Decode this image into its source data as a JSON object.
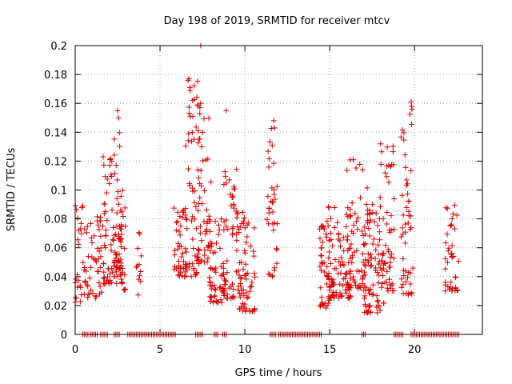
{
  "chart_data": {
    "type": "scatter",
    "title": "Day 198 of 2019, SRMTID for receiver mtcv",
    "xlabel": "GPS time / hours",
    "ylabel": "SRMTID / TECUs",
    "xlim": [
      0,
      24
    ],
    "ylim": [
      0,
      0.2
    ],
    "x_ticks": [
      0,
      5,
      10,
      15,
      20
    ],
    "x_tick_labels": [
      "0",
      "5",
      "10",
      "15",
      "20"
    ],
    "y_ticks": [
      0,
      0.02,
      0.04,
      0.06,
      0.08,
      0.1,
      0.12,
      0.14,
      0.16,
      0.18,
      0.2
    ],
    "y_tick_labels": [
      "0",
      "0.02",
      "0.04",
      "0.06",
      "0.08",
      "0.1",
      "0.12",
      "0.14",
      "0.16",
      "0.18",
      "0.2"
    ],
    "grid": true,
    "marker": "+",
    "color": "#dd0000",
    "zero_segments": [
      [
        0.45,
        0.75
      ],
      [
        0.9,
        1.3
      ],
      [
        1.5,
        1.9
      ],
      [
        2.3,
        2.6
      ],
      [
        3.1,
        5.9
      ],
      [
        7.1,
        7.5
      ],
      [
        8.2,
        8.4
      ],
      [
        8.7,
        8.9
      ],
      [
        11.5,
        11.8
      ],
      [
        12.0,
        14.5
      ],
      [
        16.9,
        17.1
      ],
      [
        18.8,
        19.3
      ],
      [
        19.8,
        22.6
      ]
    ],
    "clusters": [
      {
        "x_range": [
          0.0,
          0.6
        ],
        "y_range": [
          0.022,
          0.09
        ],
        "n": 30
      },
      {
        "x_range": [
          0.6,
          1.6
        ],
        "y_range": [
          0.025,
          0.085
        ],
        "n": 45
      },
      {
        "x_range": [
          1.6,
          2.6
        ],
        "y_range": [
          0.035,
          0.125
        ],
        "n": 60
      },
      {
        "x_range": [
          2.3,
          2.8
        ],
        "y_range": [
          0.04,
          0.155
        ],
        "n": 40
      },
      {
        "x_range": [
          2.6,
          3.0
        ],
        "y_range": [
          0.03,
          0.09
        ],
        "n": 25
      },
      {
        "x_range": [
          3.6,
          3.9
        ],
        "y_range": [
          0.026,
          0.074
        ],
        "n": 12
      },
      {
        "x_range": [
          5.8,
          6.6
        ],
        "y_range": [
          0.04,
          0.09
        ],
        "n": 45
      },
      {
        "x_range": [
          6.5,
          7.3
        ],
        "y_range": [
          0.04,
          0.178
        ],
        "n": 60
      },
      {
        "x_range": [
          7.2,
          8.0
        ],
        "y_range": [
          0.05,
          0.16
        ],
        "n": 50
      },
      {
        "x_range": [
          7.9,
          8.8
        ],
        "y_range": [
          0.022,
          0.08
        ],
        "n": 55
      },
      {
        "x_range": [
          8.7,
          9.6
        ],
        "y_range": [
          0.025,
          0.115
        ],
        "n": 55
      },
      {
        "x_range": [
          9.5,
          10.6
        ],
        "y_range": [
          0.016,
          0.085
        ],
        "n": 70
      },
      {
        "x_range": [
          11.3,
          11.9
        ],
        "y_range": [
          0.04,
          0.148
        ],
        "n": 35
      },
      {
        "x_range": [
          14.4,
          15.0
        ],
        "y_range": [
          0.018,
          0.08
        ],
        "n": 45
      },
      {
        "x_range": [
          14.9,
          16.3
        ],
        "y_range": [
          0.025,
          0.09
        ],
        "n": 90
      },
      {
        "x_range": [
          16.0,
          17.3
        ],
        "y_range": [
          0.03,
          0.122
        ],
        "n": 70
      },
      {
        "x_range": [
          17.0,
          18.2
        ],
        "y_range": [
          0.015,
          0.09
        ],
        "n": 75
      },
      {
        "x_range": [
          17.8,
          18.8
        ],
        "y_range": [
          0.03,
          0.132
        ],
        "n": 55
      },
      {
        "x_range": [
          19.2,
          19.9
        ],
        "y_range": [
          0.027,
          0.16
        ],
        "n": 50
      },
      {
        "x_range": [
          21.8,
          22.6
        ],
        "y_range": [
          0.03,
          0.091
        ],
        "n": 40
      }
    ],
    "highlights": [
      {
        "x": 7.4,
        "y": 0.2
      },
      {
        "x": 6.7,
        "y": 0.177
      },
      {
        "x": 6.75,
        "y": 0.171
      },
      {
        "x": 2.5,
        "y": 0.155
      },
      {
        "x": 2.55,
        "y": 0.15
      },
      {
        "x": 11.7,
        "y": 0.148
      },
      {
        "x": 11.75,
        "y": 0.143
      },
      {
        "x": 19.8,
        "y": 0.161
      },
      {
        "x": 19.85,
        "y": 0.156
      },
      {
        "x": 8.9,
        "y": 0.155
      },
      {
        "x": 7.35,
        "y": 0.157
      },
      {
        "x": 18.0,
        "y": 0.132
      }
    ]
  }
}
